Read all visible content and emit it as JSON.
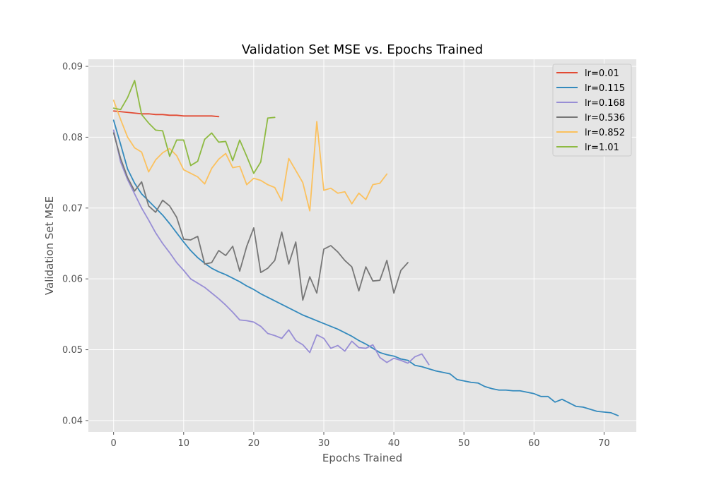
{
  "chart_data": {
    "type": "line",
    "title": "Validation Set MSE vs. Epochs Trained",
    "xlabel": "Epochs Trained",
    "ylabel": "Validation Set MSE",
    "xlim": [
      -3.6,
      74.6
    ],
    "ylim": [
      0.0384,
      0.091
    ],
    "xticks": [
      0,
      10,
      20,
      30,
      40,
      50,
      60,
      70
    ],
    "yticks": [
      0.04,
      0.05,
      0.06,
      0.07,
      0.08,
      0.09
    ],
    "ytick_labels": [
      "0.04",
      "0.05",
      "0.06",
      "0.07",
      "0.08",
      "0.09"
    ],
    "grid": true,
    "legend_position": "top-right",
    "colors": {
      "axes_background": "#e5e5e5",
      "grid": "#ffffff",
      "text": "#000000",
      "tick_text": "#555555"
    },
    "series": [
      {
        "name": "lr=0.01",
        "color": "#e24a33",
        "y": [
          0.0837,
          0.0836,
          0.0835,
          0.0834,
          0.0833,
          0.0833,
          0.0832,
          0.0832,
          0.0831,
          0.0831,
          0.083,
          0.083,
          0.083,
          0.083,
          0.083,
          0.0829
        ]
      },
      {
        "name": "lr=0.115",
        "color": "#348abd",
        "y": [
          0.0824,
          0.079,
          0.0755,
          0.0735,
          0.072,
          0.071,
          0.07,
          0.069,
          0.0678,
          0.0665,
          0.0652,
          0.064,
          0.063,
          0.0622,
          0.0615,
          0.061,
          0.0606,
          0.0601,
          0.0596,
          0.059,
          0.0585,
          0.0579,
          0.0574,
          0.0569,
          0.0564,
          0.0559,
          0.0554,
          0.0549,
          0.0545,
          0.0541,
          0.0537,
          0.0533,
          0.0529,
          0.0524,
          0.0519,
          0.0513,
          0.0508,
          0.0502,
          0.0496,
          0.0493,
          0.0491,
          0.0487,
          0.0485,
          0.0478,
          0.0476,
          0.0473,
          0.047,
          0.0468,
          0.0466,
          0.0458,
          0.0456,
          0.0454,
          0.0453,
          0.0448,
          0.0445,
          0.0443,
          0.0443,
          0.0442,
          0.0442,
          0.044,
          0.0438,
          0.0434,
          0.0434,
          0.0426,
          0.043,
          0.0425,
          0.042,
          0.0419,
          0.0416,
          0.0413,
          0.0412,
          0.0411,
          0.0407
        ]
      },
      {
        "name": "lr=0.168",
        "color": "#988ed5",
        "y": [
          0.081,
          0.0765,
          0.074,
          0.072,
          0.07,
          0.0683,
          0.0665,
          0.065,
          0.0637,
          0.0623,
          0.0612,
          0.06,
          0.0594,
          0.0588,
          0.058,
          0.0572,
          0.0563,
          0.0553,
          0.0542,
          0.0541,
          0.0539,
          0.0533,
          0.0523,
          0.052,
          0.0516,
          0.0528,
          0.0513,
          0.0507,
          0.0496,
          0.0521,
          0.0516,
          0.0502,
          0.0506,
          0.0498,
          0.0512,
          0.0503,
          0.0502,
          0.0507,
          0.0489,
          0.0482,
          0.0488,
          0.0485,
          0.0481,
          0.049,
          0.0494,
          0.0479
        ]
      },
      {
        "name": "lr=0.536",
        "color": "#777777",
        "y": [
          0.0806,
          0.077,
          0.0743,
          0.0724,
          0.0737,
          0.0703,
          0.0694,
          0.0711,
          0.0703,
          0.0687,
          0.0656,
          0.0655,
          0.066,
          0.0621,
          0.0623,
          0.064,
          0.0633,
          0.0646,
          0.0611,
          0.0646,
          0.0672,
          0.0609,
          0.0615,
          0.0626,
          0.0666,
          0.0621,
          0.0652,
          0.057,
          0.0603,
          0.058,
          0.0642,
          0.0647,
          0.0638,
          0.0626,
          0.0617,
          0.0583,
          0.0617,
          0.0597,
          0.0598,
          0.0626,
          0.058,
          0.0612,
          0.0623
        ]
      },
      {
        "name": "lr=0.852",
        "color": "#fbc15e",
        "y": [
          0.0852,
          0.0825,
          0.08,
          0.0785,
          0.0779,
          0.0751,
          0.0768,
          0.0778,
          0.0784,
          0.0774,
          0.0754,
          0.0749,
          0.0744,
          0.0734,
          0.0756,
          0.0769,
          0.0777,
          0.0757,
          0.0759,
          0.0733,
          0.0742,
          0.0739,
          0.0733,
          0.0729,
          0.071,
          0.077,
          0.0753,
          0.0736,
          0.0696,
          0.0822,
          0.0725,
          0.0728,
          0.0721,
          0.0723,
          0.0706,
          0.0721,
          0.0712,
          0.0733,
          0.0735,
          0.0748
        ]
      },
      {
        "name": "lr=1.01",
        "color": "#8eba42",
        "y": [
          0.0841,
          0.0839,
          0.0856,
          0.088,
          0.0832,
          0.082,
          0.081,
          0.0809,
          0.0773,
          0.0796,
          0.0796,
          0.076,
          0.0766,
          0.0797,
          0.0806,
          0.0793,
          0.0794,
          0.0767,
          0.0796,
          0.0773,
          0.0749,
          0.0765,
          0.0827,
          0.0828
        ]
      }
    ]
  }
}
